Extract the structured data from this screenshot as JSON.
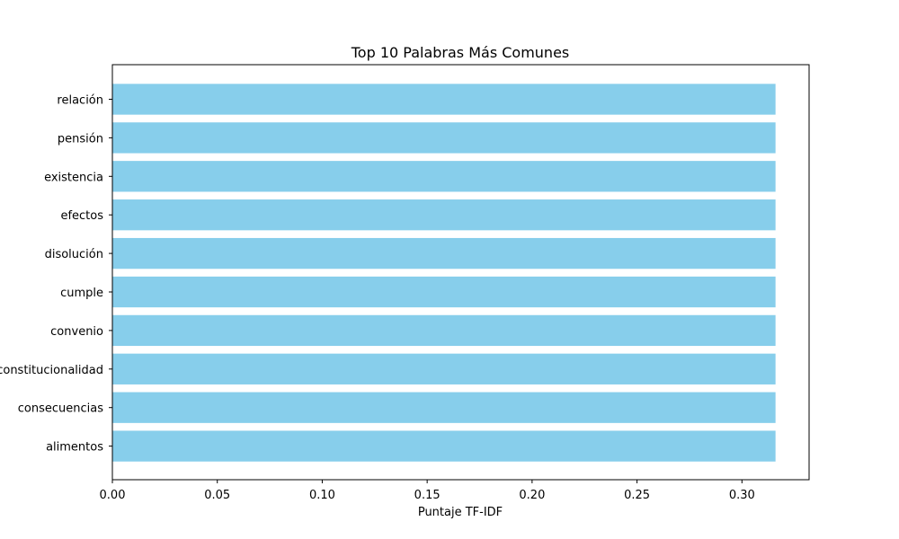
{
  "chart_data": {
    "type": "bar",
    "orientation": "horizontal",
    "title": "Top 10 Palabras Más Comunes",
    "xlabel": "Puntaje TF-IDF",
    "ylabel": "",
    "categories": [
      "relación",
      "pensión",
      "existencia",
      "efectos",
      "disolución",
      "cumple",
      "convenio",
      "constitucionalidad",
      "consecuencias",
      "alimentos"
    ],
    "values": [
      0.316,
      0.316,
      0.316,
      0.316,
      0.316,
      0.316,
      0.316,
      0.316,
      0.316,
      0.316
    ],
    "xlim": [
      0.0,
      0.332
    ],
    "xticks": [
      0.0,
      0.05,
      0.1,
      0.15,
      0.2,
      0.25,
      0.3
    ],
    "xtick_labels": [
      "0.00",
      "0.05",
      "0.10",
      "0.15",
      "0.20",
      "0.25",
      "0.30"
    ],
    "grid": false,
    "bar_color": "#87ceeb"
  }
}
